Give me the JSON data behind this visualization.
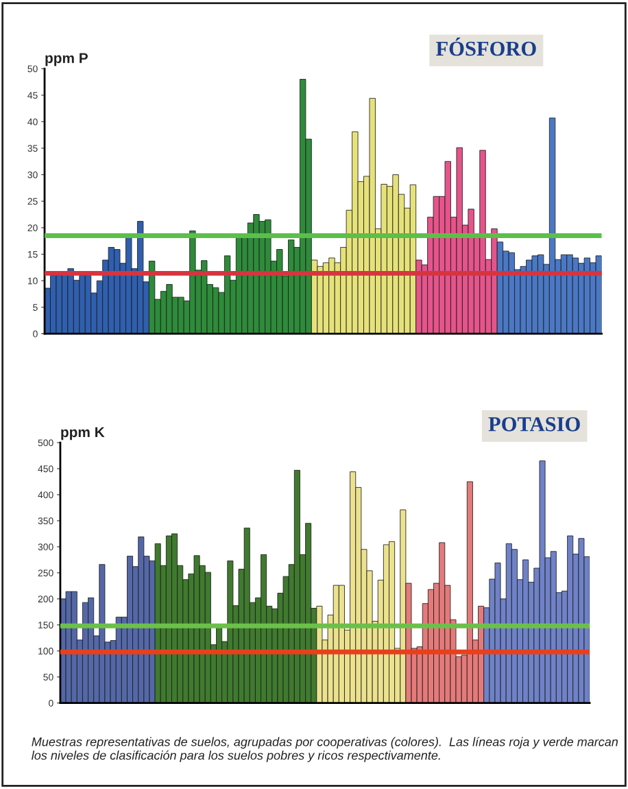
{
  "chart_data": [
    {
      "type": "bar",
      "title": "FÓSFORO",
      "ylabel": "ppm P",
      "tick_labels": "y",
      "ylim": [
        0,
        50
      ],
      "yticks": [
        0,
        5,
        10,
        15,
        20,
        25,
        30,
        35,
        40,
        45,
        50
      ],
      "categories": [
        null,
        null,
        null,
        null,
        null,
        null,
        null,
        null,
        null,
        null,
        null,
        null,
        null,
        null,
        null,
        null,
        null,
        null,
        null,
        null,
        null,
        null,
        null,
        null,
        null,
        null,
        null,
        null,
        null,
        null,
        null,
        null,
        null,
        null,
        null,
        null,
        null,
        null,
        null,
        null,
        null,
        null,
        null,
        null,
        null,
        null,
        null,
        null,
        null,
        null,
        null,
        null,
        null,
        null,
        null,
        null,
        null,
        null,
        null,
        null,
        null,
        null,
        null,
        null,
        null,
        null,
        null,
        null,
        null,
        null,
        null,
        null,
        null,
        null,
        null,
        null,
        null,
        null,
        null,
        null,
        null,
        null,
        null,
        null,
        null,
        null,
        null,
        null,
        null,
        null,
        null,
        null,
        null,
        null,
        null,
        null
      ],
      "values": [
        8.6,
        11,
        11,
        11.2,
        12.3,
        10.1,
        11,
        11,
        7.7,
        10,
        13.9,
        16.3,
        15.9,
        13.3,
        18.2,
        12.3,
        21.2,
        9.8,
        13.7,
        6.5,
        8,
        9.3,
        6.9,
        6.9,
        6.2,
        19.4,
        12,
        13.8,
        9.3,
        8.7,
        7.8,
        14.7,
        10.1,
        18.1,
        18.2,
        20.9,
        22.5,
        21.2,
        21.5,
        13.7,
        15.9,
        10.9,
        17.7,
        16.3,
        48,
        36.7,
        13.9,
        12.7,
        13.4,
        14.3,
        13.4,
        16.3,
        23.3,
        38.1,
        28.7,
        29.7,
        44.4,
        19.8,
        28.2,
        27.8,
        30,
        26.3,
        23.7,
        28.1,
        13.9,
        13,
        22,
        25.9,
        25.9,
        32.5,
        22,
        35.1,
        20.5,
        23.5,
        18.3,
        34.6,
        14,
        19.8,
        17.3,
        15.6,
        15.3,
        12.1,
        12.7,
        13.9,
        14.7,
        14.9,
        13.1,
        40.7,
        14,
        14.9,
        14.9,
        14.3,
        13.3,
        14.3,
        13.4,
        14.7
      ],
      "colors": [
        "#2f5fae",
        "#2f5fae",
        "#2f5fae",
        "#2f5fae",
        "#2f5fae",
        "#2f5fae",
        "#2f5fae",
        "#2f5fae",
        "#2f5fae",
        "#2f5fae",
        "#2f5fae",
        "#2f5fae",
        "#2f5fae",
        "#2f5fae",
        "#2f5fae",
        "#2f5fae",
        "#2f5fae",
        "#2f5fae",
        "#2e8b3a",
        "#2e8b3a",
        "#2e8b3a",
        "#2e8b3a",
        "#2e8b3a",
        "#2e8b3a",
        "#2e8b3a",
        "#2e8b3a",
        "#2e8b3a",
        "#2e8b3a",
        "#2e8b3a",
        "#2e8b3a",
        "#2e8b3a",
        "#2e8b3a",
        "#2e8b3a",
        "#2e8b3a",
        "#2e8b3a",
        "#2e8b3a",
        "#2e8b3a",
        "#2e8b3a",
        "#2e8b3a",
        "#2e8b3a",
        "#2e8b3a",
        "#2e8b3a",
        "#2e8b3a",
        "#2e8b3a",
        "#2e8b3a",
        "#2e8b3a",
        "#e6e27a",
        "#e6e27a",
        "#e6e27a",
        "#e6e27a",
        "#e6e27a",
        "#e6e27a",
        "#e6e27a",
        "#e6e27a",
        "#e6e27a",
        "#e6e27a",
        "#e6e27a",
        "#e6e27a",
        "#e6e27a",
        "#e6e27a",
        "#e6e27a",
        "#e6e27a",
        "#e6e27a",
        "#e6e27a",
        "#e5548a",
        "#e5548a",
        "#e5548a",
        "#e5548a",
        "#e5548a",
        "#e5548a",
        "#e5548a",
        "#e5548a",
        "#e5548a",
        "#e5548a",
        "#e5548a",
        "#e5548a",
        "#e5548a",
        "#e5548a",
        "#4a78c4",
        "#4a78c4",
        "#4a78c4",
        "#4a78c4",
        "#4a78c4",
        "#4a78c4",
        "#4a78c4",
        "#4a78c4",
        "#4a78c4",
        "#4a78c4",
        "#4a78c4",
        "#4a78c4",
        "#4a78c4",
        "#4a78c4",
        "#4a78c4",
        "#4a78c4",
        "#4a78c4",
        "#4a78c4"
      ],
      "ref_lines": [
        {
          "axis": "y",
          "value": 18.5,
          "color": "#5cbf4a"
        },
        {
          "axis": "y",
          "value": 11.4,
          "color": "#d8343f"
        }
      ]
    },
    {
      "type": "bar",
      "title": "POTASIO",
      "ylabel": "ppm K",
      "tick_labels": "y",
      "ylim": [
        0,
        500
      ],
      "yticks": [
        0,
        50,
        100,
        150,
        200,
        250,
        300,
        350,
        400,
        450,
        500
      ],
      "categories": [
        null,
        null,
        null,
        null,
        null,
        null,
        null,
        null,
        null,
        null,
        null,
        null,
        null,
        null,
        null,
        null,
        null,
        null,
        null,
        null,
        null,
        null,
        null,
        null,
        null,
        null,
        null,
        null,
        null,
        null,
        null,
        null,
        null,
        null,
        null,
        null,
        null,
        null,
        null,
        null,
        null,
        null,
        null,
        null,
        null,
        null,
        null,
        null,
        null,
        null,
        null,
        null,
        null,
        null,
        null,
        null,
        null,
        null,
        null,
        null,
        null,
        null,
        null,
        null,
        null,
        null,
        null,
        null,
        null,
        null,
        null,
        null,
        null,
        null,
        null,
        null,
        null,
        null,
        null,
        null,
        null,
        null,
        null,
        null,
        null,
        null,
        null,
        null,
        null,
        null,
        null,
        null,
        null,
        null,
        null
      ],
      "values": [
        200,
        214,
        214,
        121,
        193,
        202,
        129,
        266,
        117,
        120,
        165,
        165,
        282,
        262,
        319,
        282,
        273,
        306,
        264,
        321,
        325,
        264,
        237,
        248,
        283,
        264,
        251,
        112,
        147,
        118,
        273,
        187,
        257,
        336,
        193,
        202,
        285,
        186,
        181,
        211,
        243,
        266,
        447,
        285,
        345,
        182,
        186,
        121,
        169,
        226,
        226,
        140,
        444,
        414,
        295,
        254,
        157,
        236,
        304,
        310,
        105,
        371,
        230,
        105,
        108,
        191,
        218,
        230,
        308,
        226,
        160,
        89,
        92,
        425,
        121,
        186,
        183,
        238,
        269,
        200,
        306,
        295,
        237,
        275,
        232,
        259,
        465,
        279,
        291,
        212,
        215,
        321,
        286,
        316,
        281
      ],
      "colors": [
        "#5468a8",
        "#5468a8",
        "#5468a8",
        "#5468a8",
        "#5468a8",
        "#5468a8",
        "#5468a8",
        "#5468a8",
        "#5468a8",
        "#5468a8",
        "#5468a8",
        "#5468a8",
        "#5468a8",
        "#5468a8",
        "#5468a8",
        "#5468a8",
        "#5468a8",
        "#3f7a2e",
        "#3f7a2e",
        "#3f7a2e",
        "#3f7a2e",
        "#3f7a2e",
        "#3f7a2e",
        "#3f7a2e",
        "#3f7a2e",
        "#3f7a2e",
        "#3f7a2e",
        "#3f7a2e",
        "#3f7a2e",
        "#3f7a2e",
        "#3f7a2e",
        "#3f7a2e",
        "#3f7a2e",
        "#3f7a2e",
        "#3f7a2e",
        "#3f7a2e",
        "#3f7a2e",
        "#3f7a2e",
        "#3f7a2e",
        "#3f7a2e",
        "#3f7a2e",
        "#3f7a2e",
        "#3f7a2e",
        "#3f7a2e",
        "#3f7a2e",
        "#3f7a2e",
        "#ece28e",
        "#ece28e",
        "#ece28e",
        "#ece28e",
        "#ece28e",
        "#ece28e",
        "#ece28e",
        "#ece28e",
        "#ece28e",
        "#ece28e",
        "#ece28e",
        "#ece28e",
        "#ece28e",
        "#ece28e",
        "#ece28e",
        "#ece28e",
        "#e57a7a",
        "#e57a7a",
        "#e57a7a",
        "#e57a7a",
        "#e57a7a",
        "#e57a7a",
        "#e57a7a",
        "#e57a7a",
        "#e57a7a",
        "#e57a7a",
        "#e57a7a",
        "#e57a7a",
        "#e57a7a",
        "#e57a7a",
        "#6f82c8",
        "#6f82c8",
        "#6f82c8",
        "#6f82c8",
        "#6f82c8",
        "#6f82c8",
        "#6f82c8",
        "#6f82c8",
        "#6f82c8",
        "#6f82c8",
        "#6f82c8",
        "#6f82c8",
        "#6f82c8",
        "#6f82c8",
        "#6f82c8",
        "#6f82c8",
        "#6f82c8",
        "#6f82c8",
        "#6f82c8"
      ],
      "ref_lines": [
        {
          "axis": "y",
          "value": 148,
          "color": "#6cc04a"
        },
        {
          "axis": "y",
          "value": 98,
          "color": "#e8401c"
        }
      ],
      "annotations": [
        "Muestras representativas de suelos, agrupadas por cooperativas (colores).  Las líneas roja y verde marcan los niveles de clasificación para los suelos pobres y ricos respectivamente."
      ]
    }
  ]
}
